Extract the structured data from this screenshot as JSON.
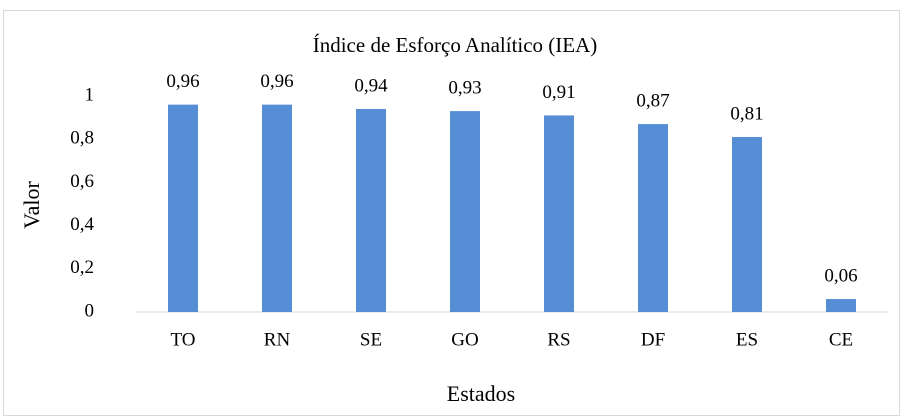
{
  "chart_data": {
    "type": "bar",
    "title": "Índice de Esforço Analítico (IEA)",
    "x_label": "Estados",
    "y_label": "Valor",
    "categories": [
      "TO",
      "RN",
      "SE",
      "GO",
      "RS",
      "DF",
      "ES",
      "CE"
    ],
    "values": [
      0.96,
      0.96,
      0.94,
      0.93,
      0.91,
      0.87,
      0.81,
      0.06
    ],
    "value_labels": [
      "0,96",
      "0,96",
      "0,94",
      "0,93",
      "0,91",
      "0,87",
      "0,81",
      "0,06"
    ],
    "color": "#558ed5",
    "ylim": [
      0,
      1
    ],
    "yticks": [
      0,
      {
        "value": 0.2,
        "label": "0,2"
      },
      {
        "value": 0.4,
        "label": "0,4"
      },
      {
        "value": 0.6,
        "label": "0,6"
      },
      {
        "value": 0.8,
        "label": "0,8"
      },
      1
    ],
    "grid": false
  }
}
